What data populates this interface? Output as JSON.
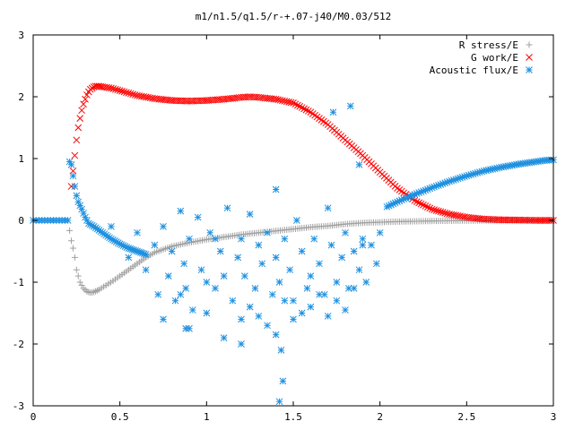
{
  "chart_data": {
    "type": "scatter",
    "title": "m1/n1.5/q1.5/r-+.07-j40/M0.03/512",
    "xlabel": "",
    "ylabel": "",
    "xlim": [
      0,
      3
    ],
    "ylim": [
      -3,
      3
    ],
    "x_ticks": [
      "0",
      "0.5",
      "1",
      "1.5",
      "2",
      "2.5",
      "3"
    ],
    "y_ticks": [
      "-3",
      "-2",
      "-1",
      "0",
      "1",
      "2",
      "3"
    ],
    "legend_position": "top-right",
    "grid": false,
    "series": [
      {
        "name": "R stress/E",
        "marker": "plus",
        "color": "#a0a0a0",
        "x": [
          0.2,
          0.22,
          0.23,
          0.24,
          0.25,
          0.27,
          0.29,
          0.31,
          0.33,
          0.35,
          0.38,
          0.42,
          0.46,
          0.5,
          0.55,
          0.6,
          0.65,
          0.7,
          0.8,
          0.9,
          1.0,
          1.1,
          1.2,
          1.3,
          1.4,
          1.5,
          1.6,
          1.7,
          1.8,
          1.9,
          2.0,
          2.1,
          2.2,
          2.3,
          2.4,
          2.5,
          2.6,
          2.7,
          2.8,
          2.9,
          3.0
        ],
        "y": [
          0,
          -0.33,
          -0.45,
          -0.6,
          -0.8,
          -1.0,
          -1.1,
          -1.15,
          -1.17,
          -1.16,
          -1.12,
          -1.05,
          -0.98,
          -0.9,
          -0.8,
          -0.7,
          -0.6,
          -0.52,
          -0.42,
          -0.36,
          -0.31,
          -0.27,
          -0.23,
          -0.2,
          -0.17,
          -0.14,
          -0.11,
          -0.09,
          -0.06,
          -0.04,
          -0.03,
          -0.02,
          -0.015,
          -0.01,
          -0.006,
          -0.004,
          -0.002,
          -0.001,
          0,
          0,
          0
        ]
      },
      {
        "name": "G work/E",
        "marker": "cross",
        "color": "#ff0000",
        "x": [
          0.22,
          0.23,
          0.24,
          0.25,
          0.26,
          0.27,
          0.28,
          0.29,
          0.3,
          0.31,
          0.32,
          0.33,
          0.34,
          0.35,
          0.36,
          0.37,
          0.38,
          0.4,
          0.45,
          0.5,
          0.6,
          0.7,
          0.8,
          0.9,
          1.0,
          1.1,
          1.2,
          1.25,
          1.3,
          1.4,
          1.5,
          1.6,
          1.7,
          1.8,
          1.9,
          2.0,
          2.1,
          2.2,
          2.3,
          2.4,
          2.5,
          2.6,
          2.7,
          2.8,
          2.9,
          3.0
        ],
        "y": [
          0.55,
          0.8,
          1.05,
          1.3,
          1.5,
          1.65,
          1.78,
          1.88,
          1.96,
          2.03,
          2.08,
          2.12,
          2.14,
          2.16,
          2.17,
          2.17,
          2.17,
          2.16,
          2.14,
          2.1,
          2.02,
          1.97,
          1.94,
          1.93,
          1.94,
          1.96,
          1.99,
          2.0,
          1.99,
          1.96,
          1.9,
          1.75,
          1.55,
          1.3,
          1.05,
          0.78,
          0.52,
          0.32,
          0.18,
          0.1,
          0.05,
          0.02,
          0.01,
          0.005,
          0,
          0
        ]
      },
      {
        "name": "Acoustic flux/E",
        "marker": "star",
        "color": "#1e90e0",
        "x": [
          0.0,
          0.05,
          0.1,
          0.15,
          0.2,
          0.21,
          0.22,
          0.23,
          0.24,
          0.25,
          0.26,
          0.28,
          0.3,
          0.32,
          0.35,
          0.4,
          0.45,
          0.5,
          0.55,
          0.6,
          0.65,
          2.04,
          2.1,
          2.2,
          2.3,
          2.4,
          2.5,
          2.6,
          2.7,
          2.8,
          2.9,
          2.95,
          3.0,
          0.45,
          0.55,
          0.6,
          0.65,
          0.7,
          0.72,
          0.75,
          0.78,
          0.8,
          0.82,
          0.85,
          0.87,
          0.88,
          0.9,
          0.92,
          0.95,
          0.97,
          1.0,
          1.02,
          1.05,
          1.08,
          1.1,
          1.12,
          1.15,
          1.18,
          1.2,
          1.22,
          1.25,
          1.28,
          1.3,
          1.32,
          1.35,
          1.38,
          1.4,
          1.42,
          1.45,
          1.48,
          1.5,
          1.52,
          1.55,
          1.58,
          1.6,
          1.62,
          1.65,
          1.68,
          1.7,
          1.72,
          1.75,
          1.78,
          1.8,
          1.82,
          1.85,
          1.88,
          1.9,
          1.92,
          1.95,
          1.98,
          2.0,
          0.75,
          0.85,
          0.9,
          1.0,
          1.05,
          1.1,
          1.2,
          1.25,
          1.3,
          1.35,
          1.4,
          1.45,
          1.5,
          1.55,
          1.6,
          1.65,
          1.7,
          1.75,
          1.8,
          1.85,
          1.9,
          1.43,
          1.44,
          1.42,
          1.2,
          0.88,
          1.83,
          1.4,
          1.73,
          1.88
        ],
        "y": [
          0,
          0,
          0,
          0,
          0,
          0.95,
          0.9,
          0.72,
          0.55,
          0.4,
          0.3,
          0.18,
          0.05,
          -0.05,
          -0.1,
          -0.2,
          -0.3,
          -0.38,
          -0.45,
          -0.5,
          -0.55,
          0.22,
          0.3,
          0.42,
          0.53,
          0.63,
          0.72,
          0.8,
          0.86,
          0.91,
          0.95,
          0.97,
          0.98,
          -0.1,
          -0.6,
          -0.2,
          -0.8,
          -0.4,
          -1.2,
          -0.1,
          -0.9,
          -0.5,
          -1.3,
          0.15,
          -0.7,
          -1.1,
          -0.3,
          -1.45,
          0.05,
          -0.8,
          -1.0,
          -0.2,
          -1.1,
          -0.5,
          -0.9,
          0.2,
          -1.3,
          -0.6,
          -0.3,
          -0.9,
          0.1,
          -1.1,
          -0.4,
          -0.7,
          -0.2,
          -1.2,
          -0.6,
          -1.0,
          -0.3,
          -0.8,
          -1.3,
          0.0,
          -0.5,
          -1.1,
          -0.9,
          -0.3,
          -0.7,
          -1.2,
          0.2,
          -0.4,
          -1.0,
          -0.6,
          -0.2,
          -1.1,
          -0.5,
          -0.8,
          -0.3,
          -1.0,
          -0.4,
          -0.7,
          -0.2,
          -1.6,
          -1.2,
          -1.75,
          -1.5,
          -0.3,
          -1.9,
          -1.6,
          -1.4,
          -1.55,
          -1.7,
          -1.85,
          -1.3,
          -1.6,
          -1.5,
          -1.4,
          -1.2,
          -1.55,
          -1.3,
          -1.45,
          -1.1,
          -0.4,
          -2.1,
          -2.6,
          -2.93,
          -2.0,
          -1.75,
          1.85,
          0.5,
          1.75,
          0.9
        ]
      }
    ]
  }
}
